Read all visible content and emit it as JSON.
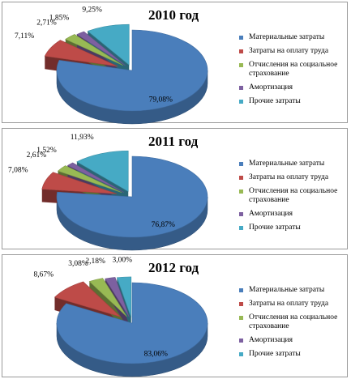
{
  "chart_data": [
    {
      "type": "pie",
      "title": "2010 год",
      "categories": [
        "Материальные затраты",
        "Затраты на оплату труда",
        "Отчисления на социальное страхование",
        "Амортизация",
        "Прочие затраты"
      ],
      "values": [
        79.08,
        7.11,
        2.71,
        1.85,
        9.25
      ],
      "value_labels": [
        "79,08%",
        "7,11%",
        "2,71%",
        "1,85%",
        "9,25%"
      ],
      "colors": [
        "#4a7ebb",
        "#be4b48",
        "#98b954",
        "#7d60a0",
        "#46aac5"
      ],
      "legend_position": "right",
      "style": "3D exploded pie"
    },
    {
      "type": "pie",
      "title": "2011 год",
      "categories": [
        "Материальные затраты",
        "Затраты на оплату труда",
        "Отчисления на социальное страхование",
        "Амортизация",
        "Прочие затраты"
      ],
      "values": [
        76.87,
        7.08,
        2.61,
        1.52,
        11.93
      ],
      "value_labels": [
        "76,87%",
        "7,08%",
        "2,61%",
        "1,52%",
        "11,93%"
      ],
      "colors": [
        "#4a7ebb",
        "#be4b48",
        "#98b954",
        "#7d60a0",
        "#46aac5"
      ],
      "legend_position": "right",
      "style": "3D exploded pie"
    },
    {
      "type": "pie",
      "title": "2012 год",
      "categories": [
        "Материальные затраты",
        "Затраты на оплату труда",
        "Отчисления на социальное страхование",
        "Амортизация",
        "Прочие затраты"
      ],
      "values": [
        83.06,
        8.67,
        3.08,
        2.18,
        3.0
      ],
      "value_labels": [
        "83,06%",
        "8,67%",
        "3,08%",
        "2,18%",
        "3,00%"
      ],
      "colors": [
        "#4a7ebb",
        "#be4b48",
        "#98b954",
        "#7d60a0",
        "#46aac5"
      ],
      "legend_position": "right",
      "style": "3D exploded pie"
    }
  ]
}
